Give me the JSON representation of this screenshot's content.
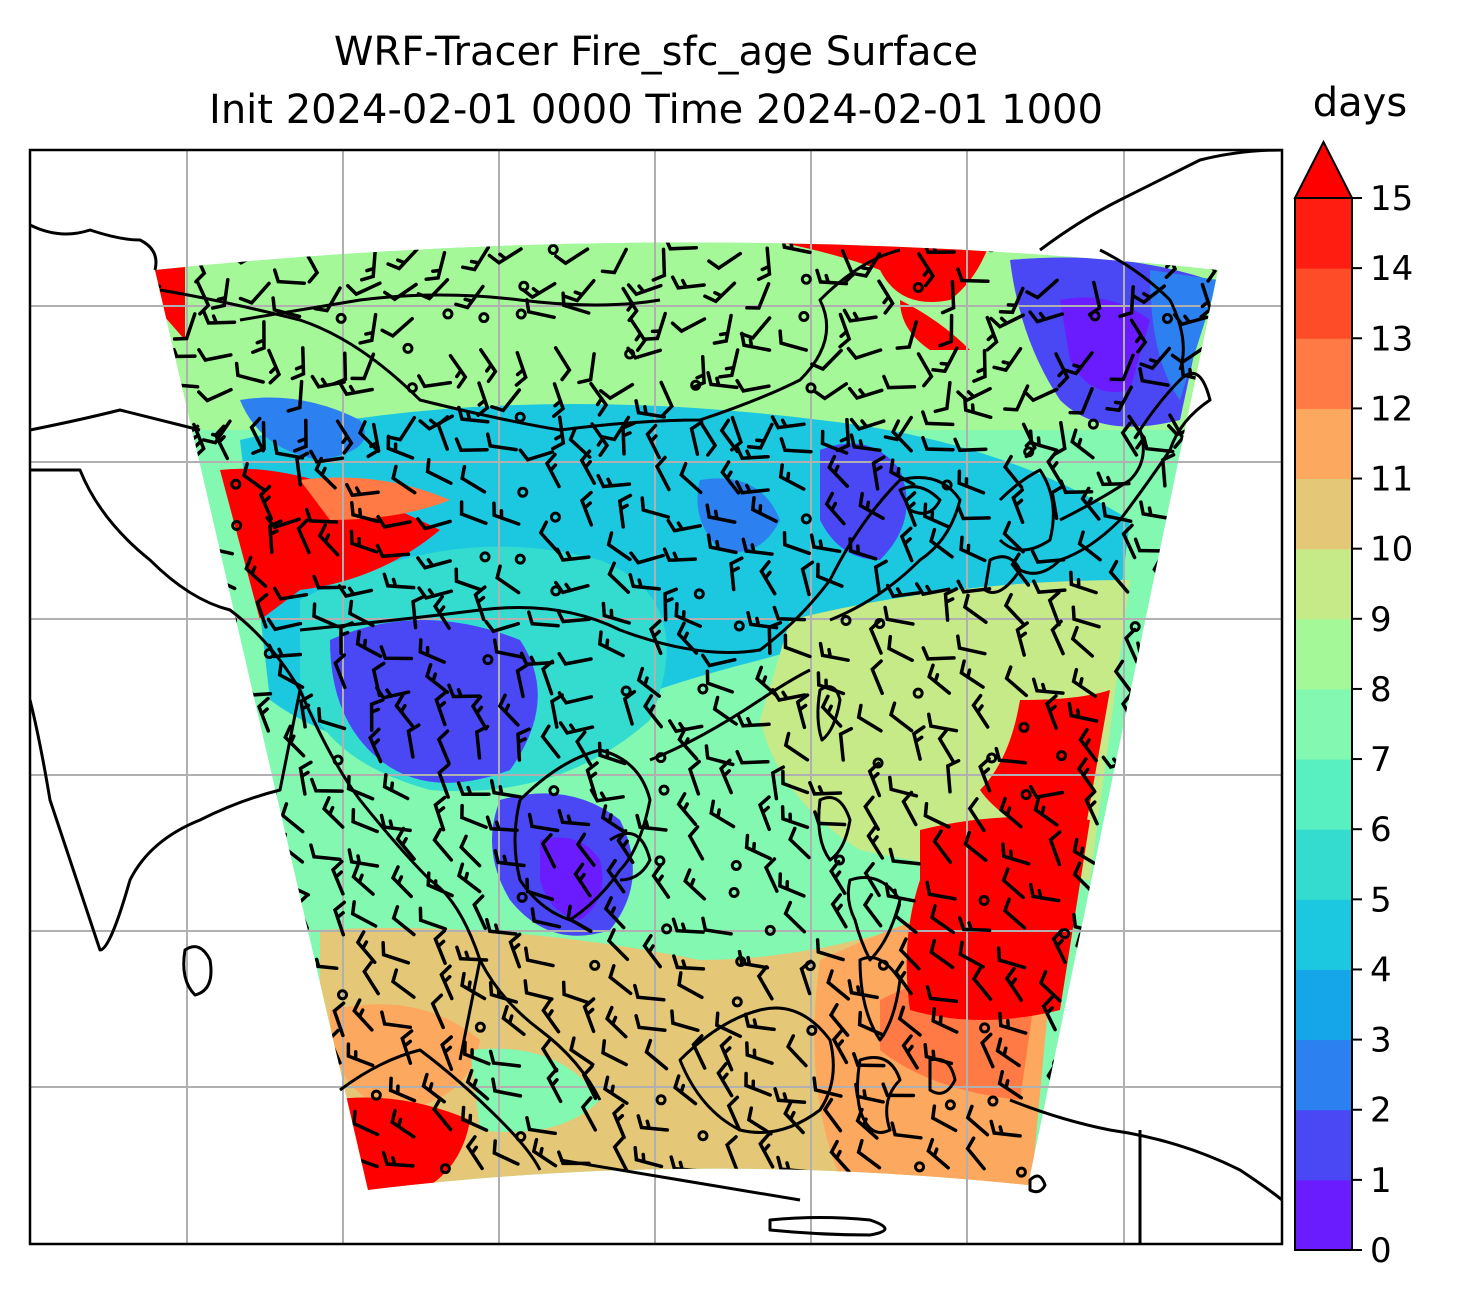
{
  "title_line1": "WRF-Tracer Fire_sfc_age Surface",
  "title_line2": "Init 2024-02-01 0000 Time 2024-02-01 1000",
  "colorbar": {
    "units": "days",
    "min": 0,
    "max": 15,
    "extend": "max",
    "ticks": [
      "0",
      "1",
      "2",
      "3",
      "4",
      "5",
      "6",
      "7",
      "8",
      "9",
      "10",
      "11",
      "12",
      "13",
      "14",
      "15"
    ],
    "level_colors": [
      "#6a1cff",
      "#4a47f5",
      "#2c80f0",
      "#14a6e8",
      "#1cc8e0",
      "#34dcd0",
      "#58f0c0",
      "#82f8b0",
      "#a4f898",
      "#c6ea88",
      "#e4c878",
      "#fca85e",
      "#ff7a44",
      "#ff4c28",
      "#ff1c10"
    ],
    "extend_color": "#ff0000"
  },
  "map": {
    "land_outline_color": "#000000",
    "gridline_color": "#b0b0b0",
    "background_color": "#ffffff",
    "wind_barb_color": "#000000"
  }
}
